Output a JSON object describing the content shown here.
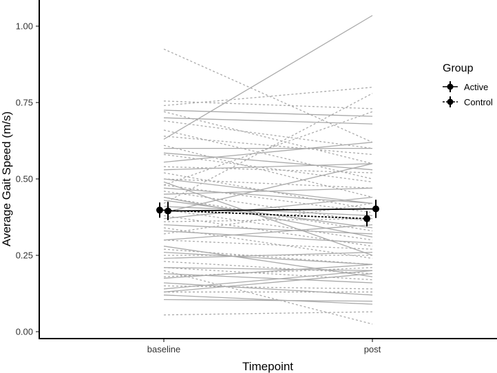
{
  "chart_data": {
    "type": "line",
    "title": "",
    "xlabel": "Timepoint",
    "ylabel": "Average Gait Speed (m/s)",
    "categories": [
      "baseline",
      "post"
    ],
    "ylim": [
      0,
      1.05
    ],
    "yticks": [
      "0.00",
      "0.25",
      "0.50",
      "0.75",
      "1.00"
    ],
    "grid": false,
    "legend": {
      "title": "Group",
      "placement": "right",
      "entries": [
        {
          "label": "Active",
          "linetype": "solid"
        },
        {
          "label": "Control",
          "linetype": "dotted"
        }
      ]
    },
    "colors": {
      "individual": "#aaaaaa",
      "summary": "#000000"
    },
    "summary": [
      {
        "group": "Active",
        "linetype": "solid",
        "means": [
          0.395,
          0.402
        ],
        "errors": [
          0.03,
          0.03
        ]
      },
      {
        "group": "Control",
        "linetype": "dotted",
        "means": [
          0.398,
          0.37
        ],
        "errors": [
          0.025,
          0.025
        ]
      }
    ],
    "individual_series": [
      {
        "group": "Active",
        "values": [
          0.63,
          1.035
        ]
      },
      {
        "group": "Active",
        "values": [
          0.725,
          0.705
        ]
      },
      {
        "group": "Active",
        "values": [
          0.7,
          0.68
        ]
      },
      {
        "group": "Active",
        "values": [
          0.6,
          0.6
        ]
      },
      {
        "group": "Active",
        "values": [
          0.585,
          0.53
        ]
      },
      {
        "group": "Active",
        "values": [
          0.555,
          0.62
        ]
      },
      {
        "group": "Active",
        "values": [
          0.53,
          0.55
        ]
      },
      {
        "group": "Active",
        "values": [
          0.49,
          0.25
        ]
      },
      {
        "group": "Active",
        "values": [
          0.47,
          0.42
        ]
      },
      {
        "group": "Active",
        "values": [
          0.45,
          0.47
        ]
      },
      {
        "group": "Active",
        "values": [
          0.43,
          0.34
        ]
      },
      {
        "group": "Active",
        "values": [
          0.41,
          0.38
        ]
      },
      {
        "group": "Active",
        "values": [
          0.39,
          0.55
        ]
      },
      {
        "group": "Active",
        "values": [
          0.37,
          0.44
        ]
      },
      {
        "group": "Active",
        "values": [
          0.35,
          0.32
        ]
      },
      {
        "group": "Active",
        "values": [
          0.33,
          0.29
        ]
      },
      {
        "group": "Active",
        "values": [
          0.3,
          0.35
        ]
      },
      {
        "group": "Active",
        "values": [
          0.28,
          0.18
        ]
      },
      {
        "group": "Active",
        "values": [
          0.26,
          0.22
        ]
      },
      {
        "group": "Active",
        "values": [
          0.24,
          0.26
        ]
      },
      {
        "group": "Active",
        "values": [
          0.21,
          0.2
        ]
      },
      {
        "group": "Active",
        "values": [
          0.19,
          0.16
        ]
      },
      {
        "group": "Active",
        "values": [
          0.175,
          0.22
        ]
      },
      {
        "group": "Active",
        "values": [
          0.16,
          0.12
        ]
      },
      {
        "group": "Active",
        "values": [
          0.14,
          0.2
        ]
      },
      {
        "group": "Active",
        "values": [
          0.13,
          0.19
        ]
      },
      {
        "group": "Active",
        "values": [
          0.12,
          0.09
        ]
      },
      {
        "group": "Active",
        "values": [
          0.105,
          0.1
        ]
      },
      {
        "group": "Active",
        "values": [
          0.5,
          0.42
        ]
      },
      {
        "group": "Active",
        "values": [
          0.44,
          0.31
        ]
      },
      {
        "group": "Control",
        "values": [
          0.925,
          0.62
        ]
      },
      {
        "group": "Control",
        "values": [
          0.755,
          0.73
        ]
      },
      {
        "group": "Control",
        "values": [
          0.74,
          0.8
        ]
      },
      {
        "group": "Control",
        "values": [
          0.72,
          0.55
        ]
      },
      {
        "group": "Control",
        "values": [
          0.69,
          0.6
        ]
      },
      {
        "group": "Control",
        "values": [
          0.66,
          0.5
        ]
      },
      {
        "group": "Control",
        "values": [
          0.64,
          0.58
        ]
      },
      {
        "group": "Control",
        "values": [
          0.61,
          0.44
        ]
      },
      {
        "group": "Control",
        "values": [
          0.58,
          0.49
        ]
      },
      {
        "group": "Control",
        "values": [
          0.54,
          0.52
        ]
      },
      {
        "group": "Control",
        "values": [
          0.52,
          0.4
        ]
      },
      {
        "group": "Control",
        "values": [
          0.5,
          0.47
        ]
      },
      {
        "group": "Control",
        "values": [
          0.48,
          0.39
        ]
      },
      {
        "group": "Control",
        "values": [
          0.46,
          0.36
        ]
      },
      {
        "group": "Control",
        "values": [
          0.44,
          0.33
        ]
      },
      {
        "group": "Control",
        "values": [
          0.42,
          0.78
        ]
      },
      {
        "group": "Control",
        "values": [
          0.4,
          0.3
        ]
      },
      {
        "group": "Control",
        "values": [
          0.38,
          0.28
        ]
      },
      {
        "group": "Control",
        "values": [
          0.36,
          0.37
        ]
      },
      {
        "group": "Control",
        "values": [
          0.34,
          0.24
        ]
      },
      {
        "group": "Control",
        "values": [
          0.32,
          0.42
        ]
      },
      {
        "group": "Control",
        "values": [
          0.3,
          0.27
        ]
      },
      {
        "group": "Control",
        "values": [
          0.27,
          0.22
        ]
      },
      {
        "group": "Control",
        "values": [
          0.25,
          0.25
        ]
      },
      {
        "group": "Control",
        "values": [
          0.23,
          0.19
        ]
      },
      {
        "group": "Control",
        "values": [
          0.21,
          0.17
        ]
      },
      {
        "group": "Control",
        "values": [
          0.2,
          0.025
        ]
      },
      {
        "group": "Control",
        "values": [
          0.18,
          0.21
        ]
      },
      {
        "group": "Control",
        "values": [
          0.15,
          0.14
        ]
      },
      {
        "group": "Control",
        "values": [
          0.13,
          0.13
        ]
      },
      {
        "group": "Control",
        "values": [
          0.055,
          0.065
        ]
      },
      {
        "group": "Control",
        "values": [
          0.48,
          0.72
        ]
      }
    ]
  }
}
